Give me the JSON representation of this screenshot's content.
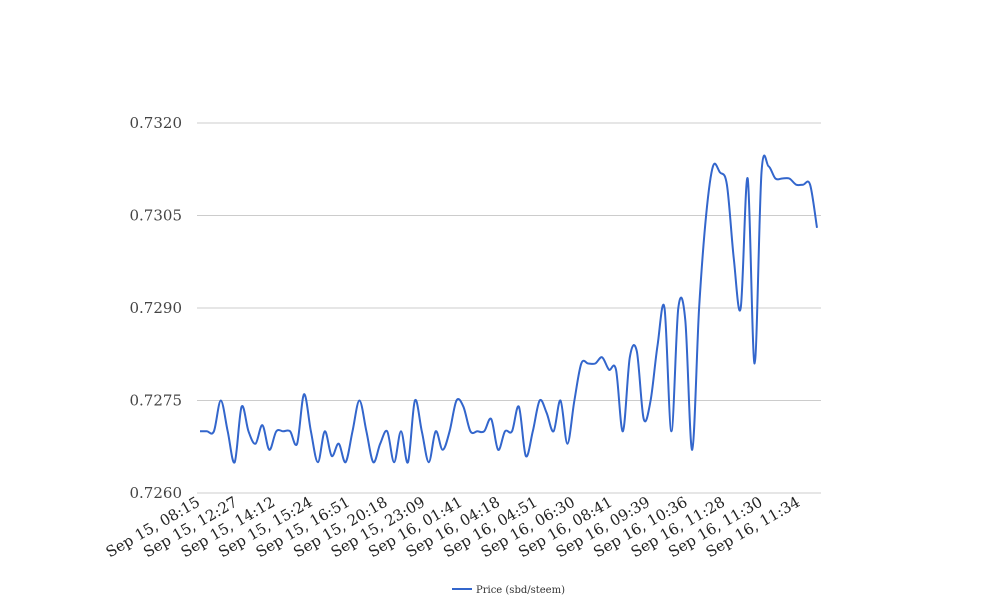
{
  "chart_data": {
    "type": "line",
    "title": "",
    "xlabel": "",
    "ylabel": "",
    "ylim": [
      0.726,
      0.732
    ],
    "y_ticks": [
      "0.7260",
      "0.7275",
      "0.7290",
      "0.7305",
      "0.7320"
    ],
    "x_tick_labels": [
      "Sep 15, 08:15",
      "Sep 15, 12:27",
      "Sep 15, 14:12",
      "Sep 15, 15:24",
      "Sep 15, 16:51",
      "Sep 15, 20:18",
      "Sep 15, 23:09",
      "Sep 16, 01:41",
      "Sep 16, 04:18",
      "Sep 16, 04:51",
      "Sep 16, 06:30",
      "Sep 16, 08:41",
      "Sep 16, 09:39",
      "Sep 16, 10:36",
      "Sep 16, 11:28",
      "Sep 16, 11:30",
      "Sep 16, 11:34"
    ],
    "grid": true,
    "legend_position": "bottom",
    "series": [
      {
        "name": "Price (sbd/steem)",
        "color": "#3366cc",
        "values": [
          0.727,
          0.727,
          0.727,
          0.7275,
          0.727,
          0.7265,
          0.7274,
          0.727,
          0.7268,
          0.7271,
          0.7267,
          0.727,
          0.727,
          0.727,
          0.7268,
          0.7276,
          0.727,
          0.7265,
          0.727,
          0.7266,
          0.7268,
          0.7265,
          0.727,
          0.7275,
          0.727,
          0.7265,
          0.7268,
          0.727,
          0.7265,
          0.727,
          0.7265,
          0.7275,
          0.727,
          0.7265,
          0.727,
          0.7267,
          0.727,
          0.7275,
          0.7274,
          0.727,
          0.727,
          0.727,
          0.7272,
          0.7267,
          0.727,
          0.727,
          0.7274,
          0.7266,
          0.727,
          0.7275,
          0.7273,
          0.727,
          0.7275,
          0.7268,
          0.7275,
          0.7281,
          0.7281,
          0.7281,
          0.7282,
          0.728,
          0.728,
          0.727,
          0.7282,
          0.7283,
          0.7272,
          0.7275,
          0.7284,
          0.729,
          0.727,
          0.729,
          0.7288,
          0.7267,
          0.729,
          0.7305,
          0.7313,
          0.7312,
          0.731,
          0.7298,
          0.729,
          0.7311,
          0.7281,
          0.7312,
          0.7313,
          0.7311,
          0.7311,
          0.7311,
          0.731,
          0.731,
          0.731,
          0.7303
        ]
      }
    ]
  }
}
